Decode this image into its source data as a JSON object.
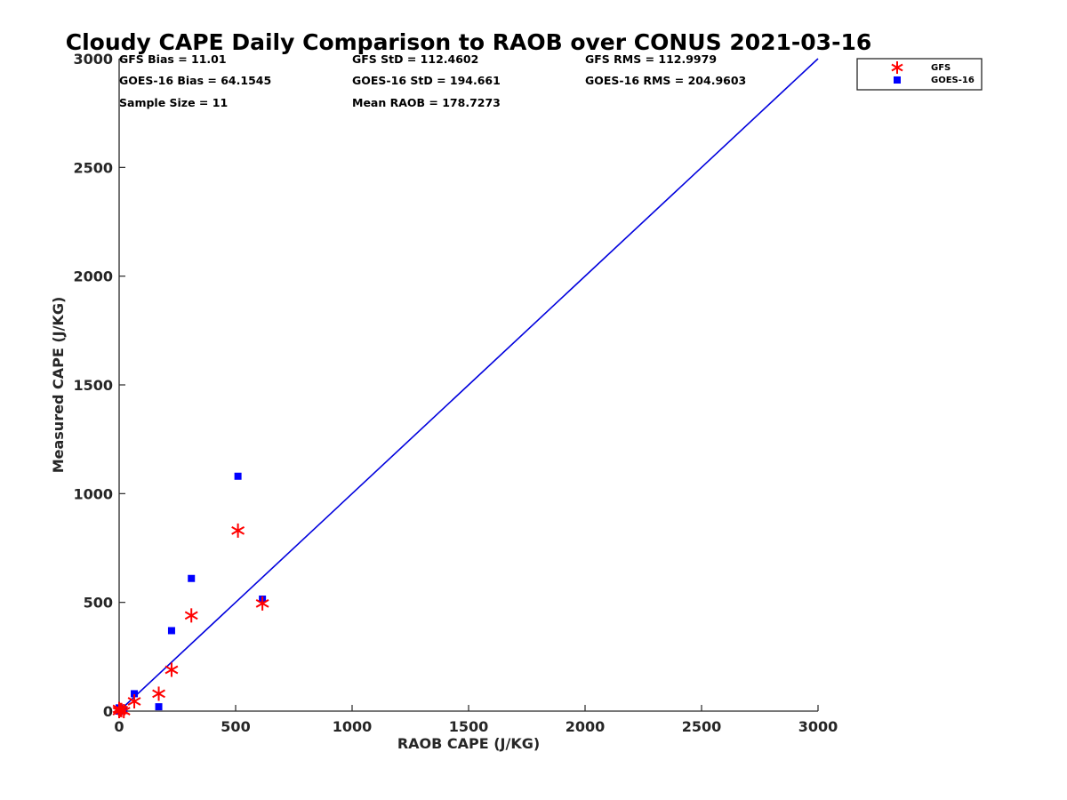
{
  "chart_data": {
    "type": "scatter",
    "title": "Cloudy CAPE Daily Comparison to RAOB over CONUS 2021-03-16",
    "xlabel": "RAOB CAPE (J/KG)",
    "ylabel": "Measured CAPE (J/KG)",
    "xlim": [
      0,
      3000
    ],
    "ylim": [
      0,
      3000
    ],
    "xticks": [
      0,
      500,
      1000,
      1500,
      2000,
      2500,
      3000
    ],
    "yticks": [
      0,
      500,
      1000,
      1500,
      2000,
      2500,
      3000
    ],
    "grid": false,
    "legend_position": "top-right",
    "reference_line": {
      "name": "1:1 line",
      "color": "#0000dd",
      "x": [
        0,
        3000
      ],
      "y": [
        0,
        3000
      ]
    },
    "stats": [
      {
        "id": "gfs-bias",
        "text": "GFS Bias = 11.01"
      },
      {
        "id": "gfs-std",
        "text": "GFS StD = 112.4602"
      },
      {
        "id": "gfs-rms",
        "text": "GFS RMS = 112.9979"
      },
      {
        "id": "goes-bias",
        "text": "GOES-16 Bias = 64.1545"
      },
      {
        "id": "goes-std",
        "text": "GOES-16 StD = 194.661"
      },
      {
        "id": "goes-rms",
        "text": "GOES-16 RMS = 204.9603"
      },
      {
        "id": "sample-size",
        "text": "Sample Size = 11"
      },
      {
        "id": "mean-raob",
        "text": "Mean RAOB = 178.7273"
      }
    ],
    "series": [
      {
        "name": "GFS",
        "marker": "asterisk",
        "color": "#ff0000",
        "points": [
          {
            "x": 0,
            "y": 0
          },
          {
            "x": 5,
            "y": 5
          },
          {
            "x": 10,
            "y": 5
          },
          {
            "x": 20,
            "y": 0
          },
          {
            "x": 65,
            "y": 45
          },
          {
            "x": 170,
            "y": 80
          },
          {
            "x": 225,
            "y": 190
          },
          {
            "x": 310,
            "y": 440
          },
          {
            "x": 510,
            "y": 830
          },
          {
            "x": 615,
            "y": 495
          },
          {
            "x": 0,
            "y": 10
          }
        ]
      },
      {
        "name": "GOES-16",
        "marker": "square",
        "color": "#0000ff",
        "points": [
          {
            "x": 0,
            "y": 0
          },
          {
            "x": 5,
            "y": 5
          },
          {
            "x": 10,
            "y": 10
          },
          {
            "x": 20,
            "y": 5
          },
          {
            "x": 65,
            "y": 80
          },
          {
            "x": 170,
            "y": 20
          },
          {
            "x": 225,
            "y": 370
          },
          {
            "x": 310,
            "y": 610
          },
          {
            "x": 510,
            "y": 1080
          },
          {
            "x": 615,
            "y": 515
          },
          {
            "x": 0,
            "y": 15
          }
        ]
      }
    ]
  }
}
